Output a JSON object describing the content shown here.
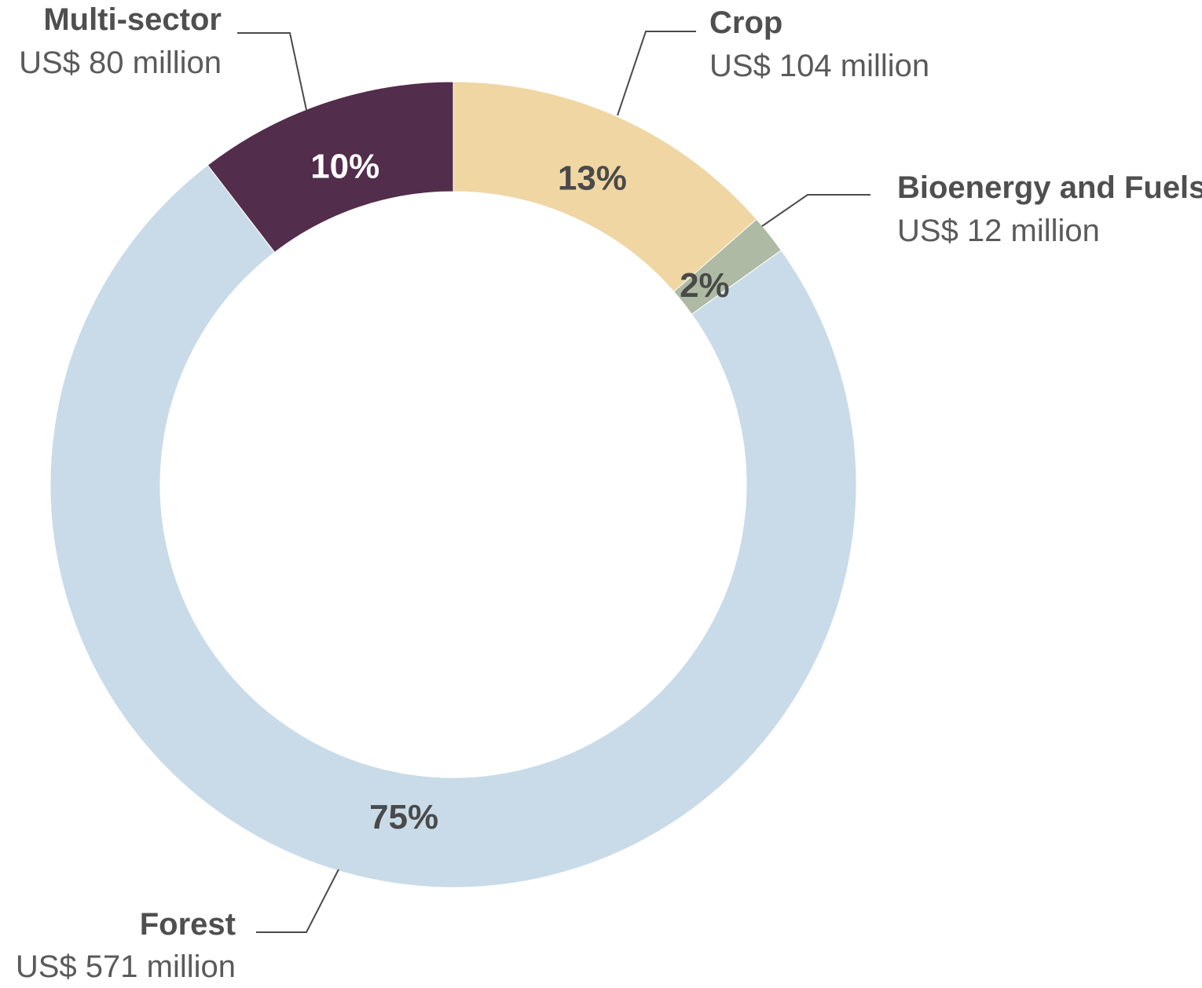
{
  "chart_data": {
    "type": "pie",
    "donut": true,
    "categories": [
      "Crop",
      "Bioenergy and Fuels",
      "Forest",
      "Multi-sector"
    ],
    "values": [
      104,
      12,
      571,
      80
    ],
    "unit": "US$ million",
    "percent_labels": [
      "13%",
      "2%",
      "75%",
      "10%"
    ],
    "amount_labels": [
      "US$ 104 million",
      "US$ 12 million",
      "US$ 571 million",
      "US$ 80 million"
    ],
    "colors": [
      "#efd6a3",
      "#aebaa3",
      "#c9dbe8",
      "#532d4c"
    ],
    "percent_label_colors": [
      "#4a4a4a",
      "#4a4a4a",
      "#4a4a4a",
      "#ffffff"
    ],
    "start_angle": "12 o'clock",
    "direction": "clockwise",
    "legend": "none; slices labelled with leader lines"
  }
}
